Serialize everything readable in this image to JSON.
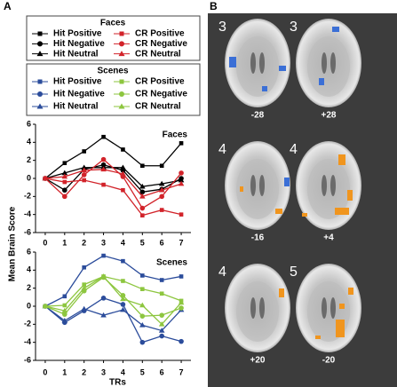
{
  "panel_labels": [
    "A",
    "B"
  ],
  "chart_data": [
    {
      "type": "line",
      "title": "Faces",
      "legend_title": "Faces",
      "ylabel": "Mean Brain Score",
      "x": [
        0,
        1,
        2,
        3,
        4,
        5,
        6,
        7
      ],
      "xlim": [
        -0.5,
        7.5
      ],
      "xticks": [
        0,
        1,
        2,
        3,
        4,
        5,
        6,
        7
      ],
      "ylim": [
        -6,
        6
      ],
      "yticks": [
        -6,
        -4,
        -2,
        0,
        2,
        4,
        6
      ],
      "series": [
        {
          "name": "Hit Positive",
          "color": "#000000",
          "marker": "square",
          "values": [
            0,
            1.7,
            3.0,
            4.6,
            3.2,
            1.4,
            1.4,
            3.9
          ]
        },
        {
          "name": "Hit Negative",
          "color": "#000000",
          "marker": "circle",
          "values": [
            0,
            -1.3,
            1.0,
            1.5,
            0.9,
            -1.5,
            -1.2,
            0
          ]
        },
        {
          "name": "Hit Neutral",
          "color": "#000000",
          "marker": "triangle",
          "values": [
            0,
            0.6,
            1.2,
            1.2,
            1.2,
            -0.9,
            -0.6,
            -0.2
          ]
        },
        {
          "name": "CR Positive",
          "color": "#d2232a",
          "marker": "square",
          "values": [
            0,
            -0.4,
            -0.2,
            -0.7,
            -1.3,
            -4.1,
            -3.5,
            -4.0
          ]
        },
        {
          "name": "CR Negative",
          "color": "#d2232a",
          "marker": "circle",
          "values": [
            0,
            -2.0,
            0.4,
            2.1,
            0.2,
            -3.3,
            -2.0,
            0.6
          ]
        },
        {
          "name": "CR Neutral",
          "color": "#d2232a",
          "marker": "triangle",
          "values": [
            0,
            0.2,
            0.9,
            1.0,
            0.5,
            -2.0,
            -1.3,
            -0.6
          ]
        }
      ]
    },
    {
      "type": "line",
      "title": "Scenes",
      "legend_title": "Scenes",
      "xlabel": "TRs",
      "x": [
        0,
        1,
        2,
        3,
        4,
        5,
        6,
        7
      ],
      "xlim": [
        -0.5,
        7.5
      ],
      "xticks": [
        0,
        1,
        2,
        3,
        4,
        5,
        6,
        7
      ],
      "ylim": [
        -6,
        6
      ],
      "yticks": [
        -6,
        -4,
        -2,
        0,
        2,
        4,
        6
      ],
      "series": [
        {
          "name": "Hit Positive",
          "color": "#2b4c9b",
          "marker": "square",
          "values": [
            0,
            1.1,
            4.3,
            5.6,
            5.0,
            3.4,
            2.9,
            3.3
          ]
        },
        {
          "name": "Hit Negative",
          "color": "#2b4c9b",
          "marker": "circle",
          "values": [
            0,
            -1.8,
            -0.5,
            0.9,
            0.2,
            -4.0,
            -3.3,
            -3.9
          ]
        },
        {
          "name": "Hit Neutral",
          "color": "#2b4c9b",
          "marker": "triangle",
          "values": [
            0,
            -1.6,
            -0.3,
            -1.0,
            -0.4,
            -2.1,
            -2.7,
            -0.4
          ]
        },
        {
          "name": "CR Positive",
          "color": "#8dc63f",
          "marker": "square",
          "values": [
            0,
            0.1,
            2.4,
            3.3,
            2.8,
            1.9,
            1.4,
            0.6
          ]
        },
        {
          "name": "CR Negative",
          "color": "#8dc63f",
          "marker": "circle",
          "values": [
            0,
            -0.9,
            1.7,
            3.2,
            1.2,
            -1.1,
            -1.0,
            -0.2
          ]
        },
        {
          "name": "CR Neutral",
          "color": "#8dc63f",
          "marker": "triangle",
          "values": [
            0,
            -0.5,
            2.0,
            3.3,
            0.8,
            0.1,
            -2.0,
            0.4
          ]
        }
      ]
    }
  ],
  "brain_panel": {
    "slices": [
      {
        "number": "3",
        "label": "-28"
      },
      {
        "number": "3",
        "label": "+28"
      },
      {
        "number": "4",
        "label": "-16"
      },
      {
        "number": "4",
        "label": "+4"
      },
      {
        "number": "4",
        "label": "+20"
      },
      {
        "number": "5",
        "label": "-20"
      }
    ]
  }
}
